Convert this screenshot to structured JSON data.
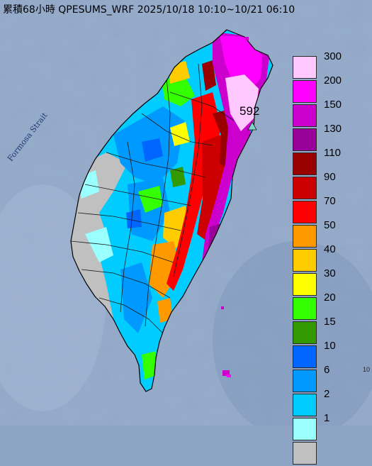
{
  "title": "累積68小時 QPESUMS_WRF 2025/10/18 10:10~10/21 06:10",
  "strait_label": "Formosa Strait",
  "max_station": {
    "value": "592",
    "marker": "triangle-icon",
    "marker_color": "#7fd6c8"
  },
  "edge_mark": "10",
  "legend": [
    {
      "label": "300",
      "color": "#ffc8ff"
    },
    {
      "label": "200",
      "color": "#ff00ff"
    },
    {
      "label": "150",
      "color": "#cc00cc"
    },
    {
      "label": "130",
      "color": "#990099"
    },
    {
      "label": "110",
      "color": "#990000"
    },
    {
      "label": "90",
      "color": "#cc0000"
    },
    {
      "label": "70",
      "color": "#ff0000"
    },
    {
      "label": "50",
      "color": "#ff9900"
    },
    {
      "label": "40",
      "color": "#ffcc00"
    },
    {
      "label": "30",
      "color": "#ffff00"
    },
    {
      "label": "20",
      "color": "#33ff00"
    },
    {
      "label": "15",
      "color": "#339900"
    },
    {
      "label": "10",
      "color": "#0066ff"
    },
    {
      "label": "6",
      "color": "#0099ff"
    },
    {
      "label": "2",
      "color": "#00ccff"
    },
    {
      "label": "1",
      "color": "#99ffff"
    },
    {
      "label": "",
      "color": "#c0c0c0"
    }
  ],
  "colors": {
    "sea": "#8ea4c4",
    "coast_outline": "#000000",
    "boundary_lines": "#1a1a1a"
  }
}
